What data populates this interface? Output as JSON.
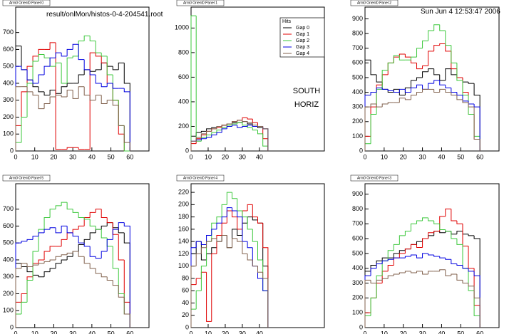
{
  "canvas": {
    "file_label": "result/onlMon/histos-0-4-204541.root",
    "date_label": "Sun Jun  4 12:53:47 2006"
  },
  "chart_data": [
    {
      "type": "histogram",
      "title": "Arm0 Orient0 Panel 0",
      "xlim": [
        0,
        70
      ],
      "xticks": [
        0,
        10,
        20,
        30,
        40,
        50,
        60
      ],
      "ylim": [
        0,
        850
      ],
      "yticks": [
        0,
        100,
        200,
        300,
        400,
        500,
        600,
        700
      ],
      "bins": [
        0,
        3,
        6,
        9,
        12,
        15,
        18,
        21,
        24,
        27,
        30,
        33,
        36,
        39,
        42,
        45,
        48,
        51,
        54,
        57,
        60
      ],
      "series": [
        {
          "color": "#000000",
          "values": [
            620,
            480,
            420,
            380,
            350,
            330,
            360,
            340,
            380,
            400,
            400,
            450,
            480,
            470,
            480,
            520,
            500,
            480,
            520,
            400
          ]
        },
        {
          "color": "#e00000",
          "values": [
            150,
            350,
            500,
            560,
            600,
            600,
            640,
            10,
            10,
            20,
            20,
            10,
            10,
            580,
            560,
            520,
            400,
            300,
            100,
            0
          ]
        },
        {
          "color": "#3cc83c",
          "values": [
            50,
            200,
            400,
            530,
            570,
            550,
            500,
            520,
            400,
            550,
            560,
            650,
            680,
            650,
            580,
            560,
            450,
            300,
            150,
            0
          ]
        },
        {
          "color": "#0000e0",
          "values": [
            500,
            480,
            420,
            400,
            450,
            500,
            550,
            580,
            560,
            600,
            630,
            540,
            480,
            450,
            400,
            380,
            400,
            370,
            370,
            350
          ]
        },
        {
          "color": "#80604c",
          "values": [
            380,
            380,
            350,
            330,
            250,
            280,
            320,
            330,
            320,
            360,
            310,
            380,
            330,
            300,
            330,
            280,
            300,
            270,
            150,
            50
          ]
        }
      ]
    },
    {
      "type": "histogram",
      "title": "Arm0 Orient0 Panel 1",
      "xlim": [
        0,
        78
      ],
      "xticks": [
        0,
        10,
        20,
        30,
        40
      ],
      "ylim": [
        0,
        1170
      ],
      "yticks": [
        0,
        200,
        400,
        600,
        800,
        1000
      ],
      "bins": [
        0,
        3,
        6,
        9,
        12,
        15,
        18,
        21,
        24,
        27,
        30,
        33,
        36,
        39,
        42,
        45
      ],
      "legend": "top-right",
      "legend_title": "Hits",
      "annotations": [
        "SOUTH",
        "HORIZ"
      ],
      "series": [
        {
          "name": "Gap 0",
          "color": "#000000",
          "values": [
            120,
            150,
            160,
            180,
            190,
            200,
            210,
            220,
            230,
            230,
            240,
            220,
            200,
            190,
            180
          ]
        },
        {
          "name": "Gap 1",
          "color": "#e00000",
          "values": [
            60,
            100,
            130,
            160,
            180,
            190,
            210,
            220,
            240,
            250,
            270,
            260,
            230,
            200,
            100
          ]
        },
        {
          "name": "Gap 2",
          "color": "#3cc83c",
          "values": [
            1100,
            80,
            110,
            130,
            150,
            170,
            190,
            210,
            220,
            230,
            210,
            190,
            170,
            140,
            40
          ]
        },
        {
          "name": "Gap 3",
          "color": "#0000e0",
          "values": [
            80,
            90,
            100,
            110,
            130,
            150,
            180,
            200,
            210,
            190,
            200,
            210,
            200,
            200,
            180
          ]
        },
        {
          "name": "Gap 4",
          "color": "#80604c",
          "values": [
            80,
            110,
            140,
            160,
            180,
            200,
            210,
            220,
            240,
            250,
            240,
            230,
            210,
            200,
            180
          ]
        }
      ]
    },
    {
      "type": "histogram",
      "title": "Arm0 Orient0 Panel 2",
      "xlim": [
        0,
        70
      ],
      "xticks": [
        0,
        10,
        20,
        30,
        40,
        50,
        60
      ],
      "ylim": [
        0,
        980
      ],
      "yticks": [
        0,
        100,
        200,
        300,
        400,
        500,
        600,
        700,
        800,
        900
      ],
      "bins": [
        0,
        3,
        6,
        9,
        12,
        15,
        18,
        21,
        24,
        27,
        30,
        33,
        36,
        39,
        42,
        45,
        48,
        51,
        54,
        57,
        60
      ],
      "series": [
        {
          "color": "#000000",
          "values": [
            620,
            520,
            470,
            420,
            400,
            420,
            380,
            430,
            480,
            500,
            540,
            560,
            520,
            480,
            560,
            520,
            500,
            470,
            460,
            380
          ]
        },
        {
          "color": "#e00000",
          "values": [
            100,
            300,
            450,
            520,
            600,
            640,
            660,
            640,
            600,
            560,
            580,
            680,
            720,
            730,
            680,
            560,
            500,
            400,
            250,
            80
          ]
        },
        {
          "color": "#3cc83c",
          "values": [
            50,
            250,
            420,
            550,
            600,
            650,
            620,
            620,
            640,
            700,
            750,
            820,
            860,
            820,
            720,
            600,
            480,
            380,
            250,
            100
          ]
        },
        {
          "color": "#0000e0",
          "values": [
            380,
            400,
            430,
            420,
            410,
            400,
            420,
            400,
            430,
            450,
            420,
            460,
            480,
            450,
            430,
            400,
            380,
            340,
            320,
            300
          ]
        },
        {
          "color": "#80604c",
          "values": [
            300,
            320,
            300,
            320,
            330,
            330,
            360,
            350,
            380,
            400,
            420,
            420,
            400,
            420,
            400,
            380,
            350,
            330,
            300,
            80
          ]
        }
      ]
    },
    {
      "type": "histogram",
      "title": "Arm0 Orient0 Panel 5",
      "xlim": [
        0,
        70
      ],
      "xticks": [
        0,
        10,
        20,
        30,
        40,
        50,
        60
      ],
      "ylim": [
        0,
        850
      ],
      "yticks": [
        0,
        100,
        200,
        300,
        400,
        500,
        600,
        700
      ],
      "bins": [
        0,
        3,
        6,
        9,
        12,
        15,
        18,
        21,
        24,
        27,
        30,
        33,
        36,
        39,
        42,
        45,
        48,
        51,
        54,
        57,
        60
      ],
      "series": [
        {
          "color": "#000000",
          "values": [
            380,
            360,
            330,
            310,
            300,
            330,
            350,
            380,
            400,
            420,
            450,
            490,
            520,
            560,
            580,
            600,
            620,
            590,
            560,
            500
          ]
        },
        {
          "color": "#e00000",
          "values": [
            150,
            200,
            300,
            380,
            400,
            450,
            480,
            480,
            520,
            560,
            580,
            600,
            650,
            680,
            700,
            650,
            620,
            550,
            400,
            150
          ]
        },
        {
          "color": "#3cc83c",
          "values": [
            80,
            150,
            280,
            450,
            580,
            650,
            700,
            720,
            740,
            700,
            680,
            650,
            640,
            600,
            580,
            530,
            480,
            350,
            200,
            80
          ]
        },
        {
          "color": "#0000e0",
          "values": [
            500,
            510,
            520,
            540,
            560,
            580,
            590,
            560,
            600,
            560,
            540,
            500,
            480,
            420,
            410,
            450,
            520,
            580,
            620,
            600
          ]
        },
        {
          "color": "#80604c",
          "values": [
            350,
            380,
            360,
            370,
            380,
            390,
            400,
            420,
            430,
            440,
            450,
            420,
            380,
            350,
            320,
            300,
            280,
            250,
            180,
            80
          ]
        }
      ]
    },
    {
      "type": "histogram",
      "title": "Arm0 Orient0 Panel 4",
      "xlim": [
        0,
        78
      ],
      "xticks": [
        0,
        10,
        20,
        30,
        40
      ],
      "ylim": [
        0,
        234
      ],
      "yticks": [
        0,
        20,
        40,
        60,
        80,
        100,
        120,
        140,
        160,
        180,
        200,
        220
      ],
      "bins": [
        0,
        3,
        6,
        9,
        12,
        15,
        18,
        21,
        24,
        27,
        30,
        33,
        36,
        39,
        42,
        45
      ],
      "series": [
        {
          "color": "#000000",
          "values": [
            120,
            140,
            110,
            120,
            130,
            140,
            150,
            130,
            160,
            150,
            170,
            180,
            175,
            170,
            100
          ]
        },
        {
          "color": "#e00000",
          "values": [
            70,
            80,
            90,
            10,
            120,
            150,
            170,
            190,
            180,
            160,
            190,
            200,
            180,
            170,
            130
          ]
        },
        {
          "color": "#3cc83c",
          "values": [
            30,
            60,
            100,
            140,
            170,
            180,
            200,
            220,
            210,
            190,
            180,
            160,
            140,
            110,
            60
          ]
        },
        {
          "color": "#0000e0",
          "values": [
            130,
            140,
            135,
            150,
            160,
            170,
            180,
            195,
            190,
            180,
            140,
            130,
            100,
            80,
            60
          ]
        },
        {
          "color": "#80604c",
          "values": [
            100,
            120,
            130,
            140,
            145,
            140,
            150,
            130,
            145,
            140,
            120,
            110,
            100,
            90,
            80
          ]
        }
      ]
    },
    {
      "type": "histogram",
      "title": "Arm0 Orient0 Panel 3",
      "xlim": [
        0,
        70
      ],
      "xticks": [
        0,
        10,
        20,
        30,
        40,
        50,
        60
      ],
      "ylim": [
        0,
        970
      ],
      "yticks": [
        0,
        100,
        200,
        300,
        400,
        500,
        600,
        700,
        800,
        900
      ],
      "bins": [
        0,
        3,
        6,
        9,
        12,
        15,
        18,
        21,
        24,
        27,
        30,
        33,
        36,
        39,
        42,
        45,
        48,
        51,
        54,
        57,
        60
      ],
      "series": [
        {
          "color": "#000000",
          "values": [
            380,
            420,
            450,
            470,
            470,
            500,
            520,
            530,
            560,
            580,
            600,
            620,
            650,
            640,
            650,
            630,
            650,
            630,
            620,
            600
          ]
        },
        {
          "color": "#e00000",
          "values": [
            100,
            200,
            300,
            380,
            420,
            470,
            500,
            530,
            560,
            540,
            600,
            640,
            650,
            750,
            800,
            720,
            700,
            550,
            400,
            150
          ]
        },
        {
          "color": "#3cc83c",
          "values": [
            80,
            200,
            350,
            450,
            520,
            560,
            620,
            650,
            700,
            720,
            740,
            720,
            700,
            660,
            650,
            600,
            560,
            400,
            250,
            80
          ]
        },
        {
          "color": "#0000e0",
          "values": [
            350,
            400,
            430,
            450,
            460,
            470,
            470,
            480,
            490,
            470,
            500,
            490,
            480,
            470,
            460,
            430,
            420,
            400,
            380,
            350
          ]
        },
        {
          "color": "#80604c",
          "values": [
            320,
            300,
            320,
            330,
            350,
            360,
            370,
            380,
            370,
            380,
            360,
            380,
            380,
            390,
            350,
            360,
            320,
            300,
            280,
            200
          ]
        }
      ]
    }
  ]
}
